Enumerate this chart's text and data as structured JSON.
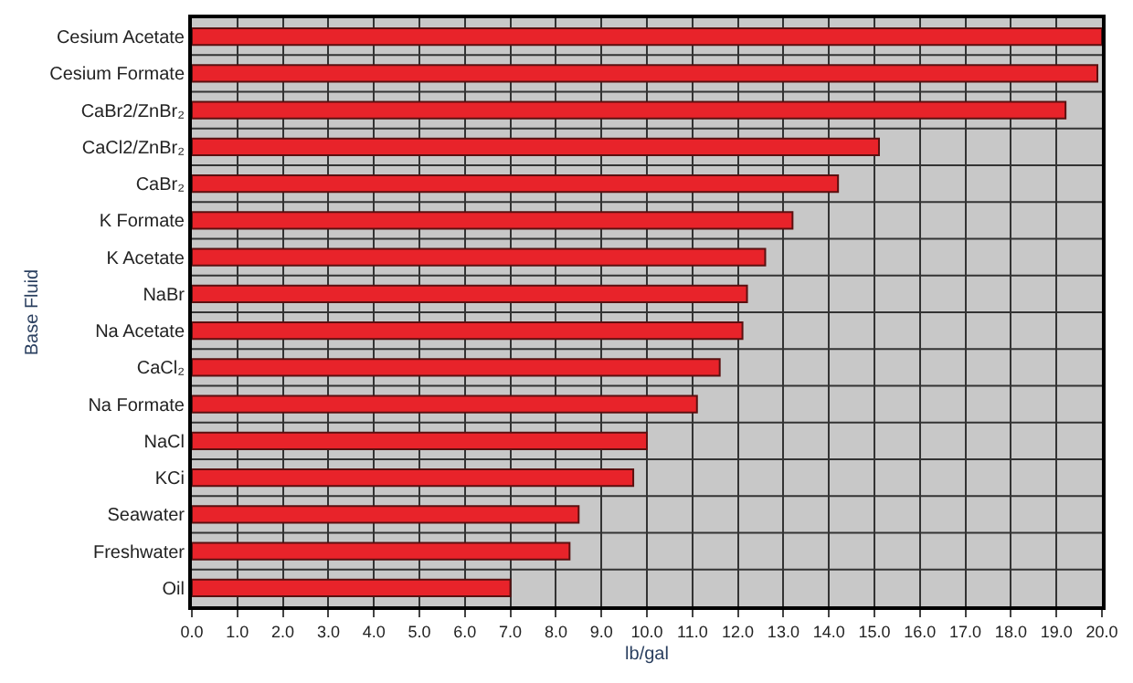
{
  "chart_data": {
    "type": "bar",
    "orientation": "horizontal",
    "ylabel": "Base Fluid",
    "xlabel": "lb/gal",
    "categories": [
      "Cesium Acetate",
      "Cesium Formate",
      "CaBr2/ZnBr₂",
      "CaCl2/ZnBr₂",
      "CaBr₂",
      "K Formate",
      "K Acetate",
      "NaBr",
      "Na Acetate",
      "CaCl₂",
      "Na Formate",
      "NaCl",
      "KCi",
      "Seawater",
      "Freshwater",
      "Oil"
    ],
    "values": [
      20.0,
      19.9,
      19.2,
      15.1,
      14.2,
      13.2,
      12.6,
      12.2,
      12.1,
      11.6,
      11.1,
      10.0,
      9.7,
      8.5,
      8.3,
      7.0
    ],
    "color": "#e8232a",
    "xlim": [
      0,
      20
    ],
    "xticks": [
      {
        "value": 0,
        "label": "0.0"
      },
      {
        "value": 1,
        "label": "1.0"
      },
      {
        "value": 2,
        "label": "2.0"
      },
      {
        "value": 3,
        "label": "3.0"
      },
      {
        "value": 4,
        "label": "4.0"
      },
      {
        "value": 5,
        "label": "5.0"
      },
      {
        "value": 6,
        "label": "6.0"
      },
      {
        "value": 7,
        "label": "7.0"
      },
      {
        "value": 8,
        "label": "8.0"
      },
      {
        "value": 9,
        "label": "9.0"
      },
      {
        "value": 10,
        "label": "10.0"
      },
      {
        "value": 11,
        "label": "11.0"
      },
      {
        "value": 12,
        "label": "12.0"
      },
      {
        "value": 13,
        "label": "13.0"
      },
      {
        "value": 14,
        "label": "14.0"
      },
      {
        "value": 15,
        "label": "15.0"
      },
      {
        "value": 16,
        "label": "16.0"
      },
      {
        "value": 17,
        "label": "17.0"
      },
      {
        "value": 18,
        "label": "18.0"
      },
      {
        "value": 19,
        "label": "19.0"
      },
      {
        "value": 20,
        "label": "20.0"
      }
    ],
    "grid": true
  }
}
